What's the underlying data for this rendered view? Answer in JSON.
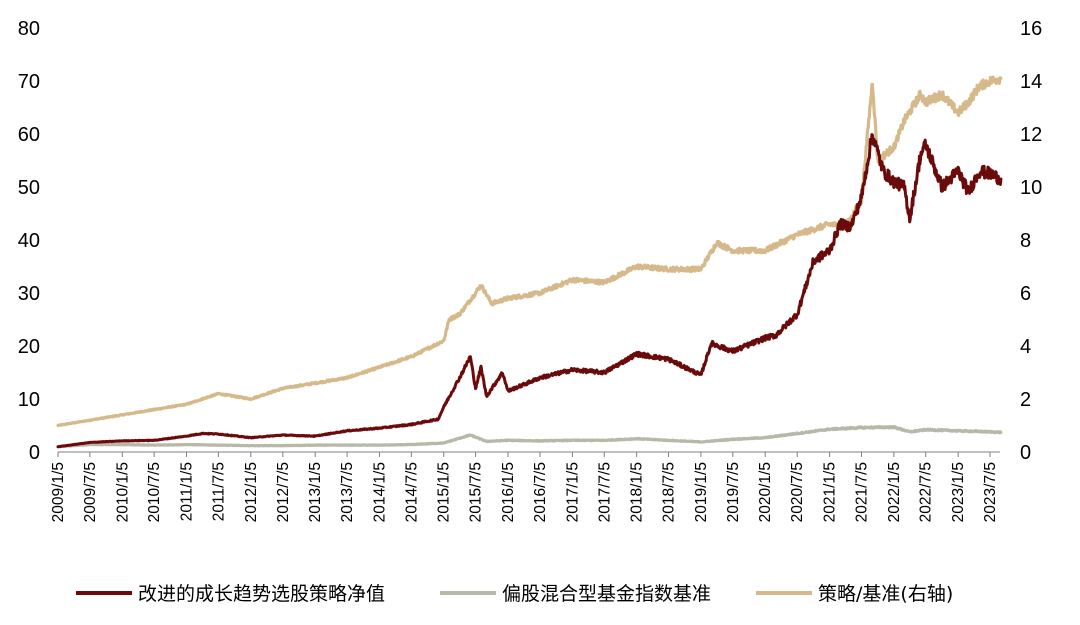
{
  "chart_data": {
    "type": "line",
    "x_tick_labels": [
      "2009/1/5",
      "2009/7/5",
      "2010/1/5",
      "2010/7/5",
      "2011/1/5",
      "2011/7/5",
      "2012/1/5",
      "2012/7/5",
      "2013/1/5",
      "2013/7/5",
      "2014/1/5",
      "2014/7/5",
      "2015/1/5",
      "2015/7/5",
      "2016/1/5",
      "2016/7/5",
      "2017/1/5",
      "2017/7/5",
      "2018/1/5",
      "2018/7/5",
      "2019/1/5",
      "2019/7/5",
      "2020/1/5",
      "2020/7/5",
      "2021/1/5",
      "2021/7/5",
      "2022/1/5",
      "2022/7/5",
      "2023/1/5",
      "2023/7/5"
    ],
    "y_left": {
      "min": 0,
      "max": 80,
      "ticks": [
        0,
        10,
        20,
        30,
        40,
        50,
        60,
        70,
        80
      ]
    },
    "y_right": {
      "min": 0,
      "max": 16,
      "ticks": [
        0,
        2,
        4,
        6,
        8,
        10,
        12,
        14,
        16
      ]
    },
    "legend_position": "bottom",
    "grid": false,
    "series": [
      {
        "name": "改进的成长趋势选股策略净值",
        "axis": "left",
        "color": "#6b0a0a",
        "points": [
          [
            "2009/1/5",
            1.0
          ],
          [
            "2009/7/5",
            1.8
          ],
          [
            "2010/1/5",
            2.1
          ],
          [
            "2010/7/5",
            2.2
          ],
          [
            "2011/1/5",
            3.0
          ],
          [
            "2011/4/5",
            3.5
          ],
          [
            "2011/7/5",
            3.4
          ],
          [
            "2012/1/5",
            2.7
          ],
          [
            "2012/7/5",
            3.2
          ],
          [
            "2013/1/5",
            3.0
          ],
          [
            "2013/7/5",
            4.0
          ],
          [
            "2014/1/5",
            4.5
          ],
          [
            "2014/7/5",
            5.2
          ],
          [
            "2014/12/5",
            6.2
          ],
          [
            "2015/1/5",
            8.5
          ],
          [
            "2015/4/5",
            14.0
          ],
          [
            "2015/6/5",
            18.0
          ],
          [
            "2015/7/5",
            12.0
          ],
          [
            "2015/8/5",
            16.0
          ],
          [
            "2015/9/5",
            10.5
          ],
          [
            "2015/12/5",
            15.0
          ],
          [
            "2016/1/5",
            11.5
          ],
          [
            "2016/7/5",
            14.0
          ],
          [
            "2017/1/5",
            15.5
          ],
          [
            "2017/7/5",
            15.0
          ],
          [
            "2018/1/5",
            18.5
          ],
          [
            "2018/7/5",
            17.5
          ],
          [
            "2018/10/5",
            16.0
          ],
          [
            "2019/1/5",
            14.5
          ],
          [
            "2019/3/5",
            20.5
          ],
          [
            "2019/7/5",
            19.0
          ],
          [
            "2020/1/5",
            21.5
          ],
          [
            "2020/3/5",
            22.0
          ],
          [
            "2020/7/5",
            26.0
          ],
          [
            "2020/10/5",
            36.0
          ],
          [
            "2021/1/5",
            38.0
          ],
          [
            "2021/3/5",
            43.0
          ],
          [
            "2021/5/5",
            42.5
          ],
          [
            "2021/7/5",
            48.0
          ],
          [
            "2021/9/5",
            60.0
          ],
          [
            "2021/11/5",
            53.0
          ],
          [
            "2022/1/5",
            51.0
          ],
          [
            "2022/3/5",
            50.0
          ],
          [
            "2022/4/5",
            44.0
          ],
          [
            "2022/6/5",
            56.0
          ],
          [
            "2022/7/5",
            58.0
          ],
          [
            "2022/10/5",
            50.0
          ],
          [
            "2023/1/5",
            53.0
          ],
          [
            "2023/3/5",
            49.0
          ],
          [
            "2023/5/5",
            53.0
          ],
          [
            "2023/7/5",
            52.5
          ],
          [
            "2023/9/5",
            51.5
          ]
        ]
      },
      {
        "name": "偏股混合型基金指数基准",
        "axis": "left",
        "color": "#b8b8a8",
        "points": [
          [
            "2009/1/5",
            1.0
          ],
          [
            "2009/7/5",
            1.4
          ],
          [
            "2010/1/5",
            1.4
          ],
          [
            "2010/7/5",
            1.3
          ],
          [
            "2011/1/5",
            1.4
          ],
          [
            "2011/7/5",
            1.3
          ],
          [
            "2012/1/5",
            1.2
          ],
          [
            "2012/7/5",
            1.2
          ],
          [
            "2013/1/5",
            1.3
          ],
          [
            "2013/7/5",
            1.3
          ],
          [
            "2014/1/5",
            1.3
          ],
          [
            "2014/7/5",
            1.4
          ],
          [
            "2015/1/5",
            1.7
          ],
          [
            "2015/6/5",
            3.2
          ],
          [
            "2015/9/5",
            2.0
          ],
          [
            "2016/1/5",
            2.2
          ],
          [
            "2016/7/5",
            2.1
          ],
          [
            "2017/1/5",
            2.2
          ],
          [
            "2017/7/5",
            2.2
          ],
          [
            "2018/1/5",
            2.5
          ],
          [
            "2018/7/5",
            2.2
          ],
          [
            "2019/1/5",
            1.9
          ],
          [
            "2019/7/5",
            2.4
          ],
          [
            "2020/1/5",
            2.7
          ],
          [
            "2020/7/5",
            3.5
          ],
          [
            "2021/1/5",
            4.3
          ],
          [
            "2021/7/5",
            4.6
          ],
          [
            "2022/1/5",
            4.7
          ],
          [
            "2022/4/5",
            3.8
          ],
          [
            "2022/7/5",
            4.2
          ],
          [
            "2023/1/5",
            4.0
          ],
          [
            "2023/7/5",
            3.8
          ],
          [
            "2023/9/5",
            3.7
          ]
        ]
      },
      {
        "name": "策略/基准(右轴)",
        "axis": "right",
        "color": "#d6b98a",
        "points": [
          [
            "2009/1/5",
            1.0
          ],
          [
            "2009/7/5",
            1.2
          ],
          [
            "2010/1/5",
            1.4
          ],
          [
            "2010/7/5",
            1.6
          ],
          [
            "2011/1/5",
            1.8
          ],
          [
            "2011/7/5",
            2.2
          ],
          [
            "2012/1/5",
            2.0
          ],
          [
            "2012/7/5",
            2.4
          ],
          [
            "2013/1/5",
            2.6
          ],
          [
            "2013/7/5",
            2.8
          ],
          [
            "2014/1/5",
            3.2
          ],
          [
            "2014/7/5",
            3.6
          ],
          [
            "2015/1/5",
            4.2
          ],
          [
            "2015/2/5",
            5.0
          ],
          [
            "2015/4/5",
            5.2
          ],
          [
            "2015/7/5",
            6.0
          ],
          [
            "2015/8/5",
            6.3
          ],
          [
            "2015/10/5",
            5.6
          ],
          [
            "2016/1/5",
            5.8
          ],
          [
            "2016/7/5",
            6.0
          ],
          [
            "2017/1/5",
            6.5
          ],
          [
            "2017/7/5",
            6.4
          ],
          [
            "2018/1/5",
            7.0
          ],
          [
            "2018/7/5",
            6.9
          ],
          [
            "2019/1/5",
            6.9
          ],
          [
            "2019/4/5",
            7.9
          ],
          [
            "2019/7/5",
            7.6
          ],
          [
            "2020/1/5",
            7.6
          ],
          [
            "2020/7/5",
            8.2
          ],
          [
            "2021/1/5",
            8.6
          ],
          [
            "2021/4/5",
            8.5
          ],
          [
            "2021/7/5",
            9.5
          ],
          [
            "2021/9/5",
            14.0
          ],
          [
            "2021/10/5",
            11.0
          ],
          [
            "2022/1/5",
            11.5
          ],
          [
            "2022/3/5",
            12.5
          ],
          [
            "2022/6/5",
            13.5
          ],
          [
            "2022/7/5",
            13.2
          ],
          [
            "2022/10/5",
            13.5
          ],
          [
            "2023/1/5",
            12.8
          ],
          [
            "2023/3/5",
            13.2
          ],
          [
            "2023/5/5",
            13.8
          ],
          [
            "2023/7/5",
            14.0
          ],
          [
            "2023/9/5",
            14.1
          ]
        ]
      }
    ]
  }
}
